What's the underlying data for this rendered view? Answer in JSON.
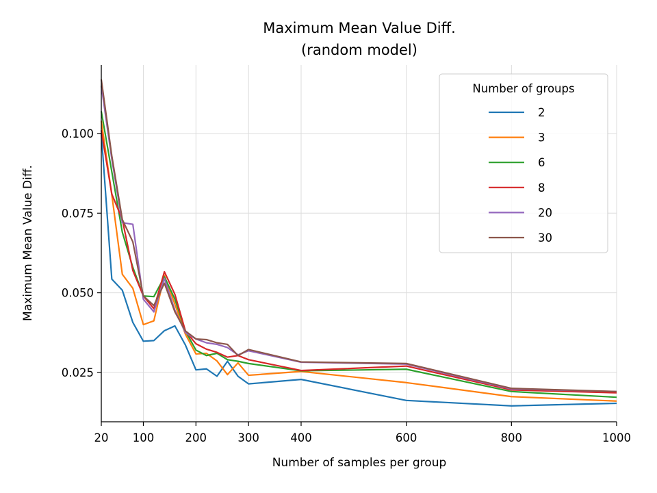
{
  "chart_data": {
    "type": "line",
    "title": [
      "Maximum Mean Value Diff.",
      "(random model)"
    ],
    "xlabel": "Number of samples per group",
    "ylabel": "Maximum Mean Value Diff.",
    "xlim": [
      20,
      1000
    ],
    "ylim": [
      0.0095,
      0.1215
    ],
    "xticks": [
      20,
      100,
      200,
      300,
      400,
      600,
      800,
      1000
    ],
    "yticks": [
      0.025,
      0.05,
      0.075,
      0.1
    ],
    "ytick_labels": [
      "0.025",
      "0.050",
      "0.075",
      "0.100"
    ],
    "grid": true,
    "legend": {
      "title": "Number of groups",
      "placement": "top-right"
    },
    "x": [
      20,
      40,
      60,
      80,
      100,
      120,
      140,
      160,
      180,
      200,
      220,
      240,
      260,
      280,
      300,
      400,
      600,
      800,
      1000
    ],
    "series": [
      {
        "name": "2",
        "color": "#1f77b4",
        "values": [
          0.1,
          0.0543,
          0.0508,
          0.0407,
          0.0348,
          0.035,
          0.0381,
          0.0396,
          0.0336,
          0.0258,
          0.0261,
          0.0238,
          0.0285,
          0.0238,
          0.0214,
          0.0228,
          0.0162,
          0.0145,
          0.0153
        ]
      },
      {
        "name": "3",
        "color": "#ff7f0e",
        "values": [
          0.104,
          0.0808,
          0.0558,
          0.0514,
          0.04,
          0.0412,
          0.0554,
          0.0464,
          0.037,
          0.0308,
          0.031,
          0.0286,
          0.0243,
          0.028,
          0.0241,
          0.0253,
          0.0218,
          0.0174,
          0.016
        ]
      },
      {
        "name": "6",
        "color": "#2ca02c",
        "values": [
          0.107,
          0.088,
          0.069,
          0.058,
          0.049,
          0.0488,
          0.055,
          0.048,
          0.038,
          0.032,
          0.0303,
          0.031,
          0.029,
          0.0285,
          0.0278,
          0.0255,
          0.026,
          0.019,
          0.0172
        ]
      },
      {
        "name": "8",
        "color": "#d62728",
        "values": [
          0.101,
          0.081,
          0.073,
          0.057,
          0.049,
          0.045,
          0.0566,
          0.0495,
          0.038,
          0.034,
          0.0323,
          0.0313,
          0.0298,
          0.0303,
          0.029,
          0.0256,
          0.027,
          0.0195,
          0.0186
        ]
      },
      {
        "name": "20",
        "color": "#9467bd",
        "values": [
          0.115,
          0.092,
          0.072,
          0.0715,
          0.048,
          0.044,
          0.0545,
          0.0445,
          0.0375,
          0.0355,
          0.0343,
          0.0338,
          0.0328,
          0.0305,
          0.0318,
          0.0282,
          0.0276,
          0.0198,
          0.019
        ]
      },
      {
        "name": "30",
        "color": "#8c564b",
        "values": [
          0.117,
          0.093,
          0.073,
          0.066,
          0.049,
          0.046,
          0.053,
          0.044,
          0.038,
          0.0355,
          0.0353,
          0.0343,
          0.0338,
          0.0303,
          0.0322,
          0.0283,
          0.0278,
          0.02,
          0.019
        ]
      }
    ]
  }
}
